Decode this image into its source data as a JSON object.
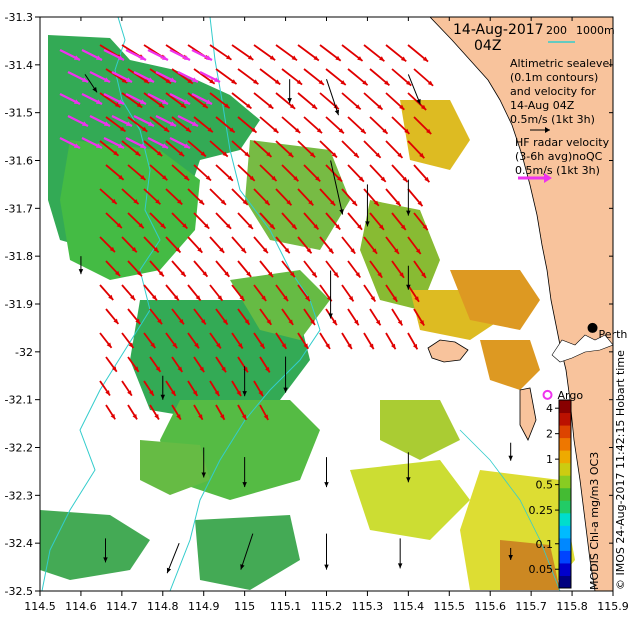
{
  "title": {
    "date": "14-Aug-2017",
    "time": "04Z",
    "scale_200": "200",
    "scale_1000": "1000m"
  },
  "legend": {
    "altimetry_line1": "Altimetric sealevel",
    "altimetry_line2": "(0.1m contours)",
    "altimetry_line3": "and velocity for",
    "altimetry_line4": "14-Aug 04Z",
    "altimetry_line5": "0.5m/s (1kt 3h)",
    "hf_line1": "HF radar velocity",
    "hf_line2": "(3-6h avg)noQC",
    "hf_line3": "0.5m/s (1kt 3h)"
  },
  "places": {
    "perth": "Perth",
    "argo": "Argo"
  },
  "colorbar": {
    "caption": "MODIS Chl-a mg/m3 OC3",
    "tick_labels": [
      "4",
      "2",
      "1",
      "0.5",
      "0.25",
      "0.1",
      "0.05"
    ],
    "tick_values": [
      4,
      2,
      1,
      0.5,
      0.25,
      0.1,
      0.05
    ]
  },
  "credit": "© IMOS 24-Aug-2017 11:42:15 Hobart time",
  "colors": {
    "land": "#f8c39c",
    "model_arrow": "#e00000",
    "hf_arrow": "#ee33ee",
    "obs_arrow": "#000000",
    "bathy": "#33cccc",
    "argo": "#ee33ee"
  },
  "chart_data": {
    "type": "map",
    "xaxis": {
      "range": [
        114.5,
        115.9
      ],
      "ticks": [
        114.5,
        114.6,
        114.7,
        114.8,
        114.9,
        115,
        115.1,
        115.2,
        115.3,
        115.4,
        115.5,
        115.6,
        115.7,
        115.8,
        115.9
      ],
      "tick_labels": [
        "114.5",
        "114.6",
        "114.7",
        "114.8",
        "114.9",
        "115",
        "115.1",
        "115.2",
        "115.3",
        "115.4",
        "115.5",
        "115.6",
        "115.7",
        "115.8",
        "115.9"
      ]
    },
    "yaxis": {
      "range": [
        -32.5,
        -31.3
      ],
      "ticks": [
        -31.3,
        -31.4,
        -31.5,
        -31.6,
        -31.7,
        -31.8,
        -31.9,
        -32,
        -32.1,
        -32.2,
        -32.3,
        -32.4,
        -32.5
      ],
      "tick_labels": [
        "-31.3",
        "-31.4",
        "-31.5",
        "-31.6",
        "-31.7",
        "-31.8",
        "-31.9",
        "-32",
        "-32.1",
        "-32.2",
        "-32.3",
        "-32.4",
        "-32.5"
      ]
    },
    "perth": {
      "lon": 115.85,
      "lat": -31.95
    },
    "argo": {
      "lon": 115.74,
      "lat": -32.09
    },
    "obs_arrows": [
      {
        "lon": 114.61,
        "lat": -31.42,
        "u": 0.02,
        "v": -0.03
      },
      {
        "lon": 115.11,
        "lat": -31.43,
        "u": 0.0,
        "v": -0.04
      },
      {
        "lon": 115.2,
        "lat": -31.43,
        "u": 0.02,
        "v": -0.06
      },
      {
        "lon": 115.4,
        "lat": -31.42,
        "u": 0.02,
        "v": -0.05
      },
      {
        "lon": 115.3,
        "lat": -31.65,
        "u": 0.0,
        "v": -0.07
      },
      {
        "lon": 115.21,
        "lat": -31.6,
        "u": 0.02,
        "v": -0.09
      },
      {
        "lon": 115.4,
        "lat": -31.64,
        "u": 0.0,
        "v": -0.06
      },
      {
        "lon": 114.6,
        "lat": -31.8,
        "u": 0.0,
        "v": -0.03
      },
      {
        "lon": 115.21,
        "lat": -31.83,
        "u": 0.0,
        "v": -0.08
      },
      {
        "lon": 115.4,
        "lat": -31.82,
        "u": 0.0,
        "v": -0.04
      },
      {
        "lon": 115.0,
        "lat": -32.03,
        "u": 0.0,
        "v": -0.05
      },
      {
        "lon": 115.1,
        "lat": -32.01,
        "u": 0.0,
        "v": -0.06
      },
      {
        "lon": 114.8,
        "lat": -32.05,
        "u": 0.0,
        "v": -0.04
      },
      {
        "lon": 114.9,
        "lat": -32.2,
        "u": 0.0,
        "v": -0.05
      },
      {
        "lon": 115.0,
        "lat": -32.22,
        "u": 0.0,
        "v": -0.05
      },
      {
        "lon": 115.2,
        "lat": -32.22,
        "u": 0.0,
        "v": -0.05
      },
      {
        "lon": 115.4,
        "lat": -32.21,
        "u": 0.0,
        "v": -0.05
      },
      {
        "lon": 115.65,
        "lat": -32.19,
        "u": 0.0,
        "v": -0.03
      },
      {
        "lon": 114.66,
        "lat": -32.39,
        "u": 0.0,
        "v": -0.04
      },
      {
        "lon": 114.84,
        "lat": -32.4,
        "u": -0.02,
        "v": -0.05
      },
      {
        "lon": 115.02,
        "lat": -32.38,
        "u": -0.02,
        "v": -0.06
      },
      {
        "lon": 115.2,
        "lat": -32.38,
        "u": 0.0,
        "v": -0.06
      },
      {
        "lon": 115.38,
        "lat": -32.39,
        "u": 0.0,
        "v": -0.05
      },
      {
        "lon": 115.65,
        "lat": -32.41,
        "u": 0.0,
        "v": -0.02
      }
    ]
  }
}
